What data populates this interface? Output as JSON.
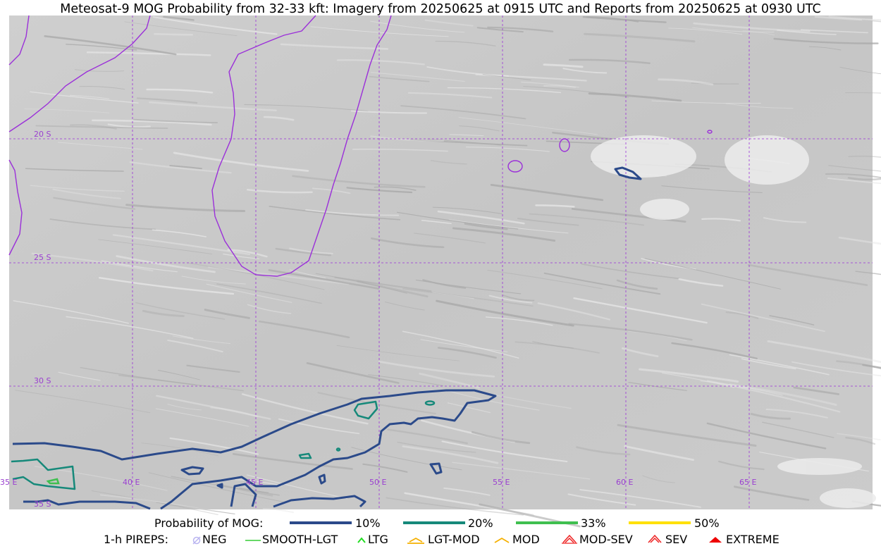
{
  "title": "Meteosat-9 MOG Probability from 32-33 kft: Imagery from 20250625 at 0915 UTC and Reports from 20250625 at 0930 UTC",
  "map": {
    "lat_labels": [
      "20 S",
      "25 S",
      "30 S",
      "35 S"
    ],
    "lon_labels": [
      "35 E",
      "40 E",
      "45 E",
      "50 E",
      "55 E",
      "60 E",
      "65 E"
    ],
    "colors": {
      "coastline": "#9b30d9",
      "grid": "#9b30d9",
      "prob_10": "#2b4a8a",
      "prob_20": "#16897a",
      "prob_33": "#3fbf4f",
      "prob_50": "#ffe000"
    }
  },
  "legend": {
    "probability": {
      "label": "Probability of MOG:",
      "items": [
        {
          "label": "10%",
          "color": "#2b4a8a"
        },
        {
          "label": "20%",
          "color": "#16897a"
        },
        {
          "label": "33%",
          "color": "#3fbf4f"
        },
        {
          "label": "50%",
          "color": "#ffe000"
        }
      ]
    },
    "pireps": {
      "label": "1-h PIREPS:",
      "items": [
        {
          "label": "NEG",
          "icon": "neg-icon",
          "color": "#b9b4f0"
        },
        {
          "label": "SMOOTH-LGT",
          "icon": "smooth-lgt-icon",
          "color": "#33cc33"
        },
        {
          "label": "LTG",
          "icon": "ltg-icon",
          "color": "#22dd22"
        },
        {
          "label": "LGT-MOD",
          "icon": "lgt-mod-icon",
          "color": "#f5b000"
        },
        {
          "label": "MOD",
          "icon": "mod-icon",
          "color": "#f5b000"
        },
        {
          "label": "MOD-SEV",
          "icon": "mod-sev-icon",
          "color": "#ee2222"
        },
        {
          "label": "SEV",
          "icon": "sev-icon",
          "color": "#ee2222"
        },
        {
          "label": "EXTREME",
          "icon": "extreme-icon",
          "color": "#ee0000"
        }
      ]
    }
  }
}
